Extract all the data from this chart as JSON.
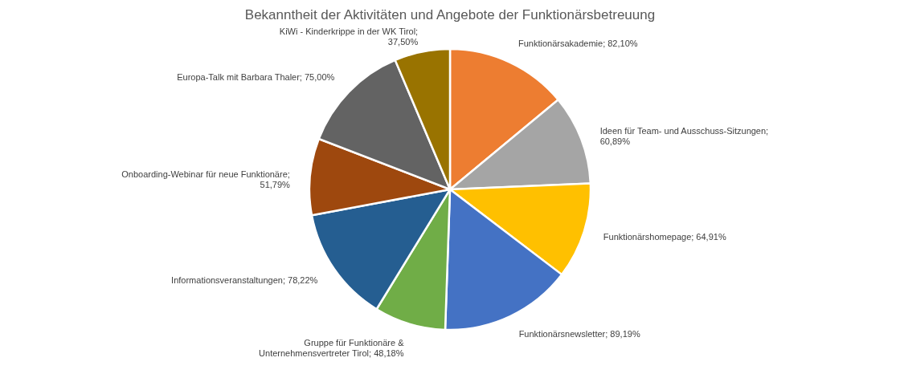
{
  "chart_data": {
    "type": "pie",
    "title": "Bekanntheit der Aktivitäten und Angebote der Funktionärsbetreuung",
    "categories": [
      "Funktionärsakademie",
      "Ideen für Team- und Ausschuss-Sitzungen",
      "Funktionärshomepage",
      "Funktionärsnewsletter",
      "Gruppe für Funktionäre & Unternehmensvertreter Tirol",
      "Informationsveranstaltungen",
      "Onboarding-Webinar für neue Funktionäre",
      "Europa-Talk mit Barbara Thaler",
      "KiWi - Kinderkrippe in der WK Tirol"
    ],
    "values": [
      82.1,
      60.89,
      64.91,
      89.19,
      48.18,
      78.22,
      51.79,
      75.0,
      37.5
    ],
    "value_labels": [
      "; 82,10%",
      "; 60,89%",
      "; 64,91%",
      "; 89,19%",
      "; 48,18%",
      "; 78,22%",
      "; 51,79%",
      "; 75,00%",
      "; 37,50%"
    ],
    "colors": [
      "#ed7d31",
      "#a5a5a5",
      "#ffc000",
      "#4472c4",
      "#70ad47",
      "#255e91",
      "#9e480e",
      "#636363",
      "#997300"
    ],
    "legend": false
  }
}
